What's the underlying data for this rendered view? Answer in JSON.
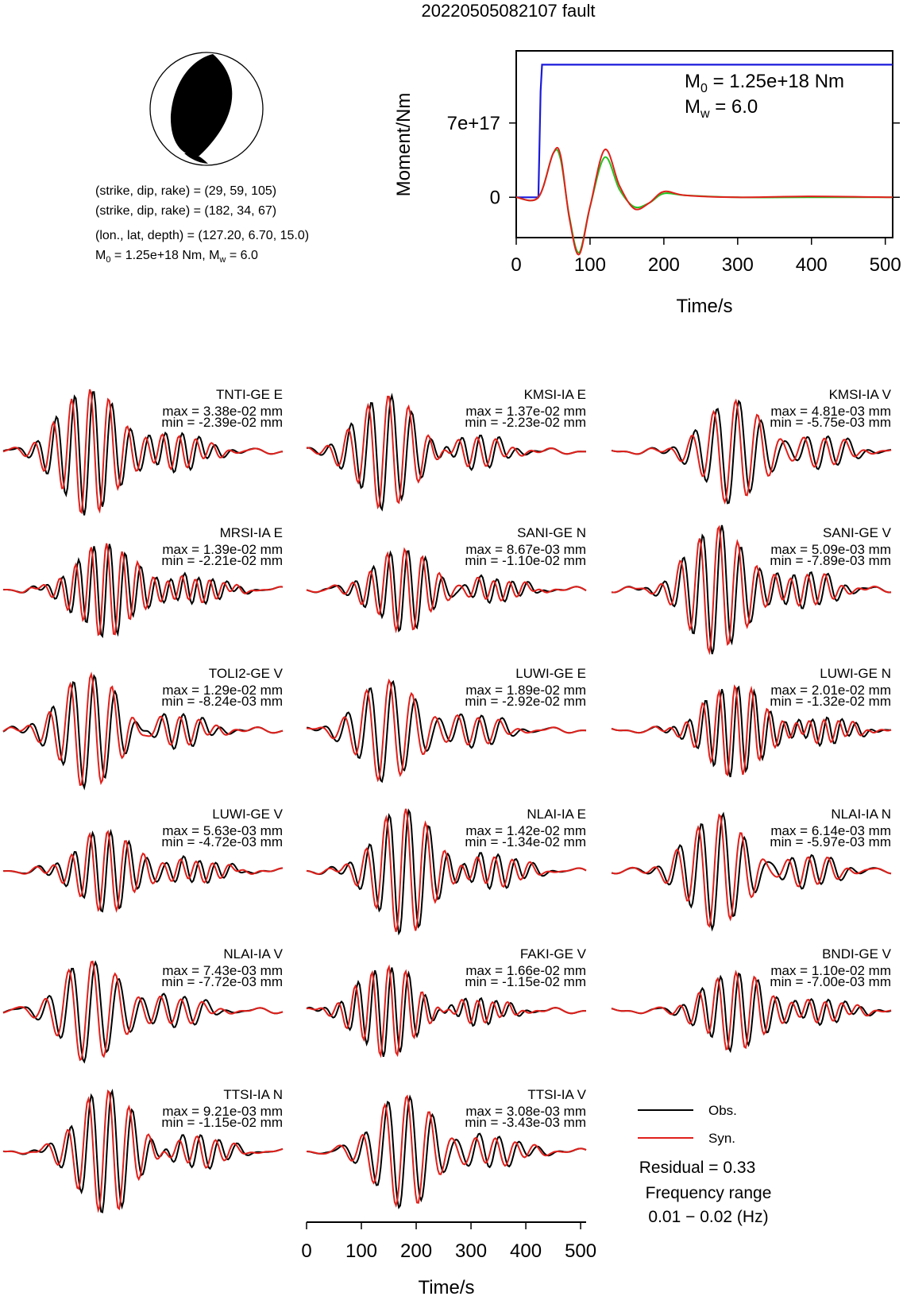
{
  "title": "20220505082107 fault",
  "mechanism": {
    "lines": [
      "(strike, dip, rake) = (29, 59, 105)",
      "(strike, dip, rake) = (182, 34, 67)",
      "(lon., lat, depth) = (127.20, 6.70, 15.0)"
    ],
    "m0_text": "M",
    "m0_sub": "0",
    "m0_rest": " = 1.25e+18 Nm, M",
    "mw_sub": "w",
    "mw_rest": " = 6.0"
  },
  "colors": {
    "obs": "#000000",
    "syn": "#e0201b",
    "moment": "#1a1adb",
    "stf_green": "#22c322"
  },
  "moment_chart": {
    "ylabel": "Moment/Nm",
    "xlabel": "Time/s",
    "yticks": [
      "0",
      "7e+17"
    ],
    "xticks": [
      "0",
      "100",
      "200",
      "300",
      "400",
      "500"
    ],
    "annot_m0_a": "M",
    "annot_m0_sub": "0",
    "annot_m0_b": " = 1.25e+18 Nm",
    "annot_mw_a": "M",
    "annot_mw_sub": "w",
    "annot_mw_b": " = 6.0"
  },
  "chart_data": [
    {
      "type": "line",
      "title": "",
      "xlabel": "Time/s",
      "ylabel": "Moment/Nm",
      "xlim": [
        0,
        510
      ],
      "ylim": [
        -3.8e+17,
        1.38e+18
      ],
      "series": [
        {
          "name": "",
          "x": [
            0,
            30,
            33,
            35,
            510
          ],
          "values": [
            0,
            0,
            1e+18,
            1.25e+18,
            1.25e+18
          ]
        }
      ]
    },
    {
      "type": "line",
      "title": "",
      "xlabel": "Time/s",
      "ylabel": "",
      "xlim": [
        0,
        510
      ],
      "series": [
        {
          "name": "Obs.",
          "x": [
            0,
            30,
            50,
            60,
            72,
            85,
            100,
            120,
            140,
            160,
            180,
            200,
            230,
            300,
            400,
            510
          ],
          "values": [
            0,
            0,
            2.3,
            2.0,
            -1.0,
            -2.9,
            -0.5,
            2.1,
            0.4,
            -0.5,
            -0.3,
            0.2,
            0.1,
            0,
            0,
            0
          ]
        },
        {
          "name": "Syn.",
          "x": [
            0,
            30,
            50,
            60,
            72,
            85,
            100,
            120,
            140,
            160,
            180,
            200,
            230,
            300,
            400,
            510
          ],
          "values": [
            0,
            0,
            2.3,
            2.2,
            -1.1,
            -3.0,
            -0.5,
            2.5,
            0.6,
            -0.6,
            -0.3,
            0.3,
            0.1,
            0,
            0.05,
            0
          ]
        }
      ]
    }
  ],
  "waveforms": [
    {
      "station": "TNTI-GE E",
      "max": "max = 3.38e-02 mm",
      "min": "min = -2.39e-02 mm"
    },
    {
      "station": "KMSI-IA E",
      "max": "max = 1.37e-02 mm",
      "min": "min = -2.23e-02 mm"
    },
    {
      "station": "KMSI-IA V",
      "max": "max = 4.81e-03 mm",
      "min": "min = -5.75e-03 mm"
    },
    {
      "station": "MRSI-IA E",
      "max": "max = 1.39e-02 mm",
      "min": "min = -2.21e-02 mm"
    },
    {
      "station": "SANI-GE N",
      "max": "max = 8.67e-03 mm",
      "min": "min = -1.10e-02 mm"
    },
    {
      "station": "SANI-GE V",
      "max": "max = 5.09e-03 mm",
      "min": "min = -7.89e-03 mm"
    },
    {
      "station": "TOLI2-GE V",
      "max": "max = 1.29e-02 mm",
      "min": "min = -8.24e-03 mm"
    },
    {
      "station": "LUWI-GE E",
      "max": "max = 1.89e-02 mm",
      "min": "min = -2.92e-02 mm"
    },
    {
      "station": "LUWI-GE N",
      "max": "max = 2.01e-02 mm",
      "min": "min = -1.32e-02 mm"
    },
    {
      "station": "LUWI-GE V",
      "max": "max = 5.63e-03 mm",
      "min": "min = -4.72e-03 mm"
    },
    {
      "station": "NLAI-IA E",
      "max": "max = 1.42e-02 mm",
      "min": "min = -1.34e-02 mm"
    },
    {
      "station": "NLAI-IA N",
      "max": "max = 6.14e-03 mm",
      "min": "min = -5.97e-03 mm"
    },
    {
      "station": "NLAI-IA V",
      "max": "max = 7.43e-03 mm",
      "min": "min = -7.72e-03 mm"
    },
    {
      "station": "FAKI-GE V",
      "max": "max = 1.66e-02 mm",
      "min": "min = -1.15e-02 mm"
    },
    {
      "station": "BNDI-GE V",
      "max": "max = 1.10e-02 mm",
      "min": "min = -7.00e-03 mm"
    },
    {
      "station": "TTSI-IA N",
      "max": "max = 9.21e-03 mm",
      "min": "min = -1.15e-02 mm"
    },
    {
      "station": "TTSI-IA V",
      "max": "max = 3.08e-03 mm",
      "min": "min = -3.43e-03 mm"
    }
  ],
  "bottom_axis": {
    "xlabel": "Time/s",
    "xticks": [
      "0",
      "100",
      "200",
      "300",
      "400",
      "500"
    ]
  },
  "legend": {
    "obs": "Obs.",
    "syn": "Syn."
  },
  "residual": "Residual = 0.33",
  "freq_label": "Frequency range",
  "freq_value": "0.01 − 0.02 (Hz)"
}
